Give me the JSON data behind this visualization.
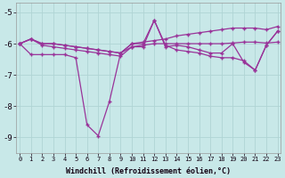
{
  "xlabel": "Windchill (Refroidissement éolien,°C)",
  "background_color": "#c8e8e8",
  "line_color": "#993399",
  "grid_color": "#b0d4d4",
  "ylim": [
    -9.5,
    -4.7
  ],
  "xlim": [
    -0.3,
    23.3
  ],
  "yticks": [
    -9,
    -8,
    -7,
    -6,
    -5
  ],
  "xticks": [
    0,
    1,
    2,
    3,
    4,
    5,
    6,
    7,
    8,
    9,
    10,
    11,
    12,
    13,
    14,
    15,
    16,
    17,
    18,
    19,
    20,
    21,
    22,
    23
  ],
  "line_dip": [
    -6.0,
    -6.35,
    -6.35,
    -6.35,
    -6.35,
    -6.45,
    -8.6,
    -8.95,
    -7.85,
    -6.3,
    -6.1,
    -6.1,
    -5.25,
    -6.05,
    -6.2,
    -6.25,
    -6.3,
    -6.4,
    -6.45,
    -6.45,
    -6.55,
    -6.85,
    -6.05,
    -5.6
  ],
  "line_flat": [
    -6.0,
    -5.85,
    -6.05,
    -6.1,
    -6.15,
    -6.2,
    -6.25,
    -6.3,
    -6.35,
    -6.4,
    -6.1,
    -6.05,
    -6.0,
    -6.0,
    -6.0,
    -6.0,
    -6.0,
    -6.0,
    -6.0,
    -5.98,
    -5.95,
    -5.95,
    -5.98,
    -5.95
  ],
  "line_up": [
    -6.0,
    -5.85,
    -6.0,
    -6.0,
    -6.05,
    -6.1,
    -6.15,
    -6.2,
    -6.25,
    -6.3,
    -6.0,
    -5.95,
    -5.9,
    -5.85,
    -5.75,
    -5.7,
    -5.65,
    -5.6,
    -5.55,
    -5.5,
    -5.5,
    -5.5,
    -5.55,
    -5.45
  ],
  "line_var": [
    -6.0,
    -5.85,
    -6.0,
    -6.0,
    -6.05,
    -6.1,
    -6.15,
    -6.2,
    -6.25,
    -6.3,
    -6.0,
    -6.0,
    -5.25,
    -6.1,
    -6.05,
    -6.1,
    -6.2,
    -6.3,
    -6.3,
    -6.0,
    -6.6,
    -6.85,
    -6.05,
    -5.6
  ]
}
